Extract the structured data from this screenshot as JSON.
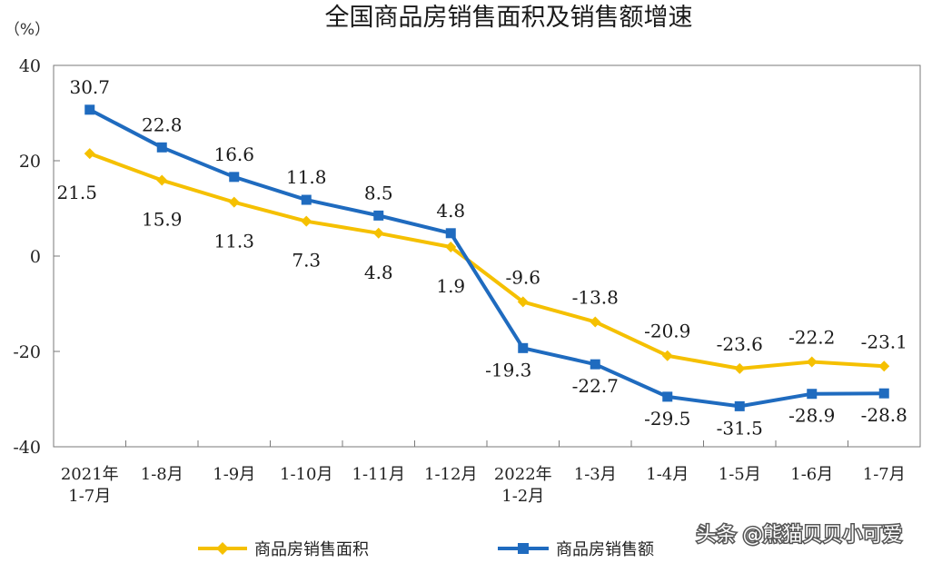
{
  "chart_data": {
    "type": "line",
    "title": "全国商品房销售面积及销售额增速",
    "ylabel": "（%）",
    "xlabel": "",
    "ylim": [
      -40,
      40
    ],
    "yticks": [
      40,
      20,
      0,
      -20,
      -40
    ],
    "grid": false,
    "legend_position": "bottom",
    "categories": [
      [
        "2021年",
        "1-7月"
      ],
      [
        "1-8月"
      ],
      [
        "1-9月"
      ],
      [
        "1-10月"
      ],
      [
        "1-11月"
      ],
      [
        "1-12月"
      ],
      [
        "2022年",
        "1-2月"
      ],
      [
        "1-3月"
      ],
      [
        "1-4月"
      ],
      [
        "1-5月"
      ],
      [
        "1-6月"
      ],
      [
        "1-7月"
      ]
    ],
    "series": [
      {
        "name": "商品房销售面积",
        "color": "#F5C000",
        "marker": "diamond",
        "values": [
          21.5,
          15.9,
          11.3,
          7.3,
          4.8,
          1.9,
          -9.6,
          -13.8,
          -20.9,
          -23.6,
          -22.2,
          -23.1
        ],
        "labels": [
          "21.5",
          "15.9",
          "11.3",
          "7.3",
          "4.8",
          "1.9",
          "-9.6",
          "-13.8",
          "-20.9",
          "-23.6",
          "-22.2",
          "-23.1"
        ]
      },
      {
        "name": "商品房销售额",
        "color": "#1F6BBF",
        "marker": "square",
        "values": [
          30.7,
          22.8,
          16.6,
          11.8,
          8.5,
          4.8,
          -19.3,
          -22.7,
          -29.5,
          -31.5,
          -28.9,
          -28.8
        ],
        "labels": [
          "30.7",
          "22.8",
          "16.6",
          "11.8",
          "8.5",
          "4.8",
          "-19.3",
          "-22.7",
          "-29.5",
          "-31.5",
          "-28.9",
          "-28.8"
        ]
      }
    ]
  },
  "watermark": "头条 @熊猫贝贝小可爱"
}
